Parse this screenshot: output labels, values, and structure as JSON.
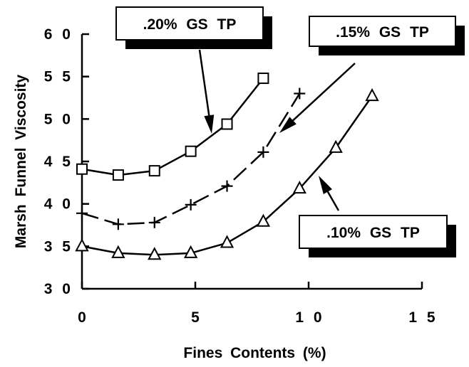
{
  "chart_data": {
    "type": "line",
    "xlabel": "Fines Contents (%)",
    "ylabel": "Marsh Funnel Viscosity",
    "xlim": [
      0,
      15
    ],
    "ylim": [
      30,
      60
    ],
    "xticks": [
      0,
      5,
      10,
      15
    ],
    "yticks": [
      30,
      35,
      40,
      45,
      50,
      55,
      60
    ],
    "xtick_labels": [
      "0",
      "5",
      "1 0",
      "1 5"
    ],
    "ytick_labels": [
      "3 0",
      "3 5",
      "4 0",
      "4 5",
      "5 0",
      "5 5",
      "6 0"
    ],
    "grid": false,
    "series": [
      {
        "name": ".20% GS TP",
        "marker": "square",
        "line_style": "solid",
        "x": [
          0,
          1.6,
          3.2,
          4.8,
          6.4,
          8.0
        ],
        "y": [
          44.1,
          43.4,
          43.9,
          46.2,
          49.4,
          54.8
        ]
      },
      {
        "name": ".15% GS TP",
        "marker": "plus",
        "line_style": "dashed",
        "x": [
          0,
          1.6,
          3.2,
          4.8,
          6.4,
          8.0,
          9.6
        ],
        "y": [
          38.9,
          37.6,
          37.8,
          39.9,
          42.1,
          46.1,
          53.0
        ]
      },
      {
        "name": ".10% GS TP",
        "marker": "triangle",
        "line_style": "solid",
        "x": [
          0,
          1.6,
          3.2,
          4.8,
          6.4,
          8.0,
          9.6,
          11.2,
          12.8
        ],
        "y": [
          35.0,
          34.2,
          34.0,
          34.2,
          35.4,
          37.9,
          41.8,
          46.6,
          52.7
        ]
      }
    ],
    "annotations": [
      {
        "text": ".20% GS TP",
        "series": 0
      },
      {
        "text": ".15% GS TP",
        "series": 1
      },
      {
        "text": ".10% GS TP",
        "series": 2
      }
    ]
  }
}
